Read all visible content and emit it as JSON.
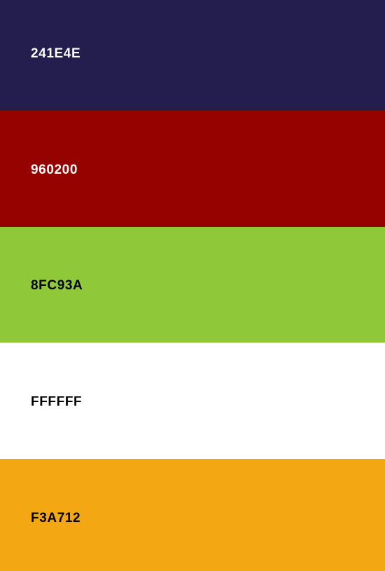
{
  "palette": {
    "swatches": [
      {
        "label": "241E4E",
        "color": "#241E4E",
        "text_color": "#FFFFFF"
      },
      {
        "label": "960200",
        "color": "#960200",
        "text_color": "#FFFFFF"
      },
      {
        "label": "8FC93A",
        "color": "#8FC93A",
        "text_color": "#000000"
      },
      {
        "label": "FFFFFF",
        "color": "#FFFFFF",
        "text_color": "#000000"
      },
      {
        "label": "F3A712",
        "color": "#F3A712",
        "text_color": "#000000"
      }
    ]
  }
}
